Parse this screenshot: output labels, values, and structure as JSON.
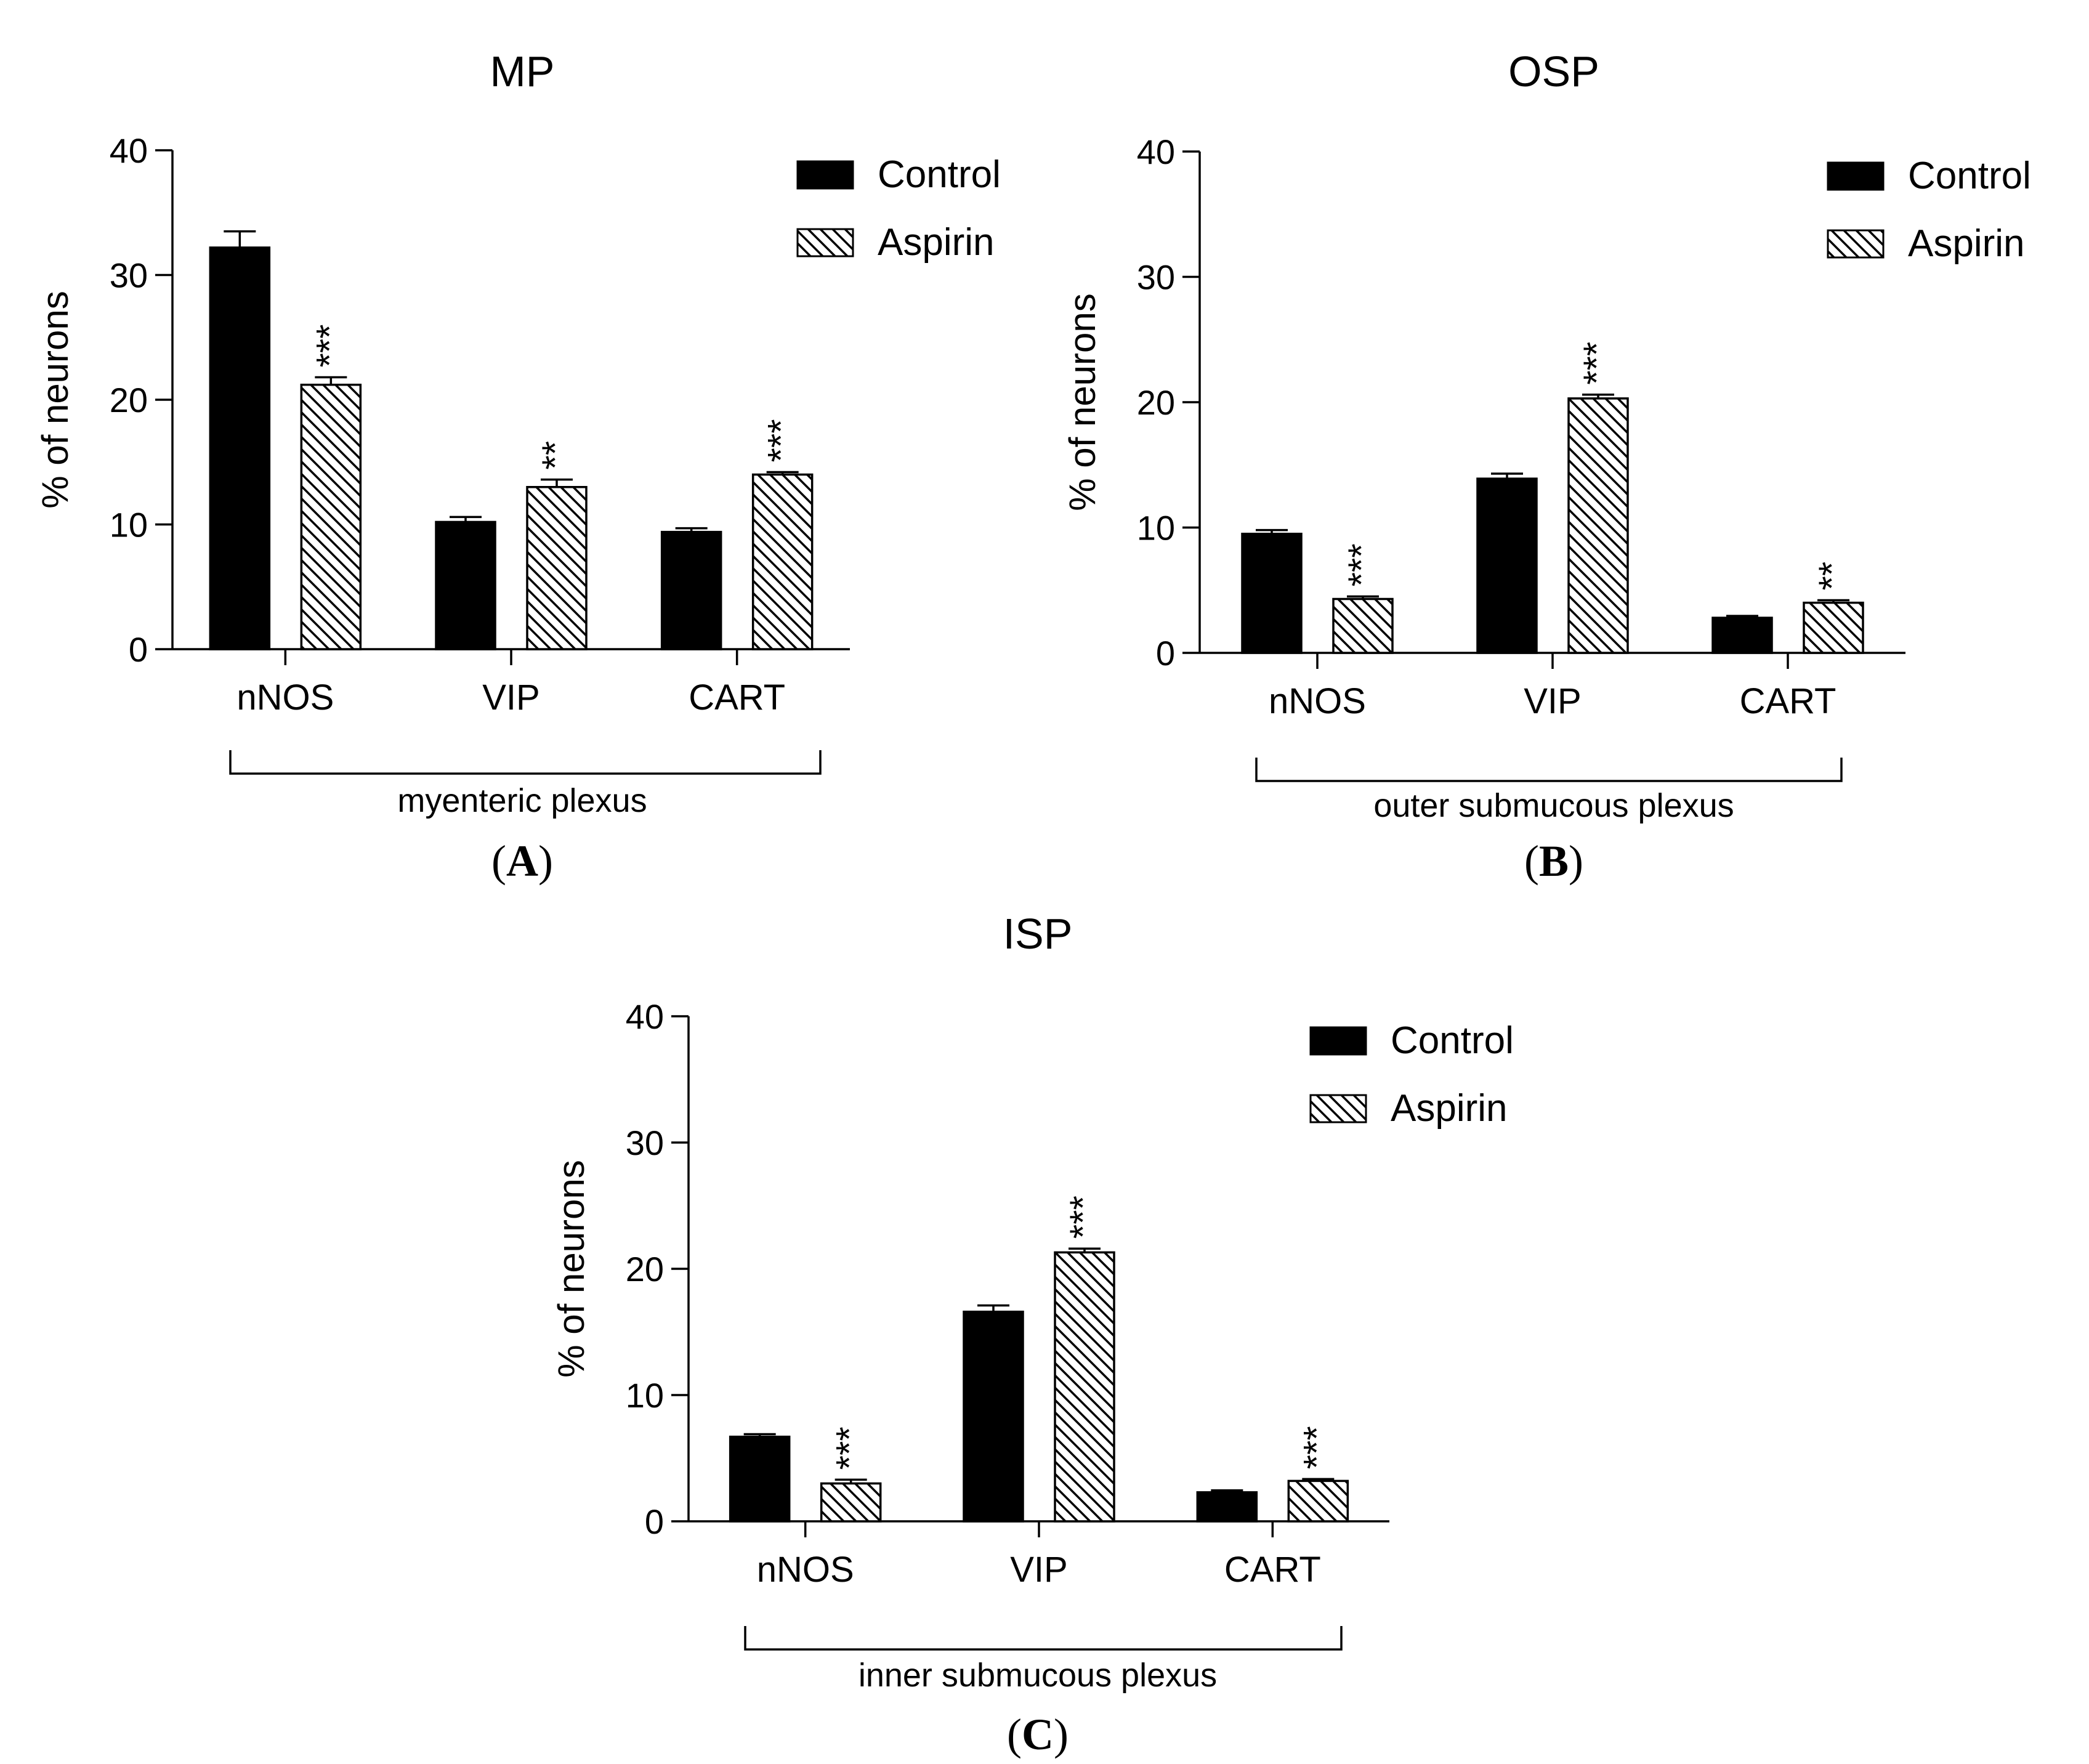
{
  "legend": {
    "control": "Control",
    "aspirin": "Aspirin"
  },
  "chart_data": [
    {
      "type": "bar",
      "title": "MP",
      "panel_label": "A",
      "group_label": "myenteric plexus",
      "xlabel": "",
      "ylabel": "% of neurons",
      "ylim": [
        0,
        40
      ],
      "yticks": [
        0,
        10,
        20,
        30,
        40
      ],
      "categories": [
        "nNOS",
        "VIP",
        "CART"
      ],
      "series": [
        {
          "name": "Control",
          "values": [
            32.2,
            10.2,
            9.4
          ],
          "errors": [
            1.3,
            0.4,
            0.3
          ]
        },
        {
          "name": "Aspirin",
          "values": [
            21.2,
            13.0,
            14.0
          ],
          "errors": [
            0.6,
            0.6,
            0.2
          ]
        }
      ],
      "significance": [
        "***",
        "**",
        "***"
      ]
    },
    {
      "type": "bar",
      "title": "OSP",
      "panel_label": "B",
      "group_label": "outer submucous plexus",
      "xlabel": "",
      "ylabel": "% of neurons",
      "ylim": [
        0,
        40
      ],
      "yticks": [
        0,
        10,
        20,
        30,
        40
      ],
      "categories": [
        "nNOS",
        "VIP",
        "CART"
      ],
      "series": [
        {
          "name": "Control",
          "values": [
            9.5,
            13.9,
            2.8
          ],
          "errors": [
            0.3,
            0.4,
            0.15
          ]
        },
        {
          "name": "Aspirin",
          "values": [
            4.3,
            20.3,
            4.0
          ],
          "errors": [
            0.2,
            0.3,
            0.2
          ]
        }
      ],
      "significance": [
        "***",
        "***",
        "**"
      ]
    },
    {
      "type": "bar",
      "title": "ISP",
      "panel_label": "C",
      "group_label": "inner submucous plexus",
      "xlabel": "",
      "ylabel": "% of neurons",
      "ylim": [
        0,
        40
      ],
      "yticks": [
        0,
        10,
        20,
        30,
        40
      ],
      "categories": [
        "nNOS",
        "VIP",
        "CART"
      ],
      "series": [
        {
          "name": "Control",
          "values": [
            6.7,
            16.6,
            2.3
          ],
          "errors": [
            0.2,
            0.5,
            0.15
          ]
        },
        {
          "name": "Aspirin",
          "values": [
            3.0,
            21.3,
            3.2
          ],
          "errors": [
            0.3,
            0.3,
            0.15
          ]
        }
      ],
      "significance": [
        "***",
        "***",
        "***"
      ]
    }
  ]
}
